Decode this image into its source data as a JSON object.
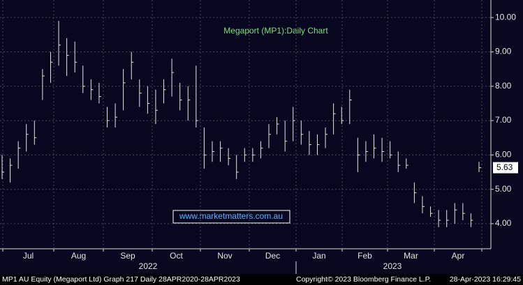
{
  "chart_data": {
    "type": "ohlc",
    "title": "Megaport (MP1):Daily Chart",
    "watermark": "www.marketmatters.com.au",
    "categories": [
      "Jul",
      "Aug",
      "Sep",
      "Oct",
      "Nov",
      "Dec",
      "Jan",
      "Feb",
      "Mar",
      "Apr"
    ],
    "years": [
      "2022",
      "2023"
    ],
    "ylim": [
      3.27,
      10.51
    ],
    "yticks": [
      {
        "value": 4,
        "label": "4.00"
      },
      {
        "value": 5,
        "label": "5.00"
      },
      {
        "value": 6,
        "label": "6.00"
      },
      {
        "value": 7,
        "label": "7.00"
      },
      {
        "value": 8,
        "label": "8.00"
      },
      {
        "value": 9,
        "label": "9.00"
      },
      {
        "value": 10,
        "label": "10.00"
      }
    ],
    "grid": true,
    "color": "#e6e6e6",
    "last_price": 5.63,
    "high": [
      6.0,
      5.9,
      6.4,
      6.9,
      7.0,
      8.5,
      9.0,
      9.9,
      9.4,
      9.3,
      8.6,
      8.2,
      8.1,
      7.4,
      7.5,
      8.5,
      9.0,
      8.2,
      8.0,
      7.9,
      8.2,
      8.8,
      8.1,
      8.0,
      8.6,
      6.8,
      6.4,
      6.4,
      6.2,
      6.0,
      6.2,
      6.2,
      6.4,
      6.9,
      7.1,
      7.0,
      7.4,
      7.0,
      6.7,
      6.6,
      6.8,
      7.5,
      7.4,
      7.9,
      6.5,
      6.4,
      6.6,
      6.5,
      6.4,
      6.1,
      5.9,
      5.2,
      4.8,
      4.5,
      4.4,
      4.4,
      4.6,
      4.6,
      4.3,
      5.8
    ],
    "low": [
      5.3,
      5.2,
      5.6,
      6.1,
      6.3,
      7.6,
      8.1,
      8.6,
      8.3,
      8.4,
      7.8,
      7.6,
      7.5,
      6.8,
      6.8,
      7.3,
      8.2,
      7.4,
      7.2,
      6.9,
      7.5,
      7.7,
      7.3,
      7.0,
      6.8,
      5.6,
      5.8,
      5.8,
      5.7,
      5.3,
      5.8,
      5.8,
      5.9,
      6.2,
      6.6,
      6.1,
      6.4,
      6.3,
      6.0,
      6.0,
      6.2,
      6.6,
      6.9,
      6.9,
      5.5,
      5.8,
      5.9,
      5.8,
      5.9,
      5.5,
      5.6,
      4.6,
      4.3,
      4.2,
      3.9,
      3.9,
      4.0,
      4.1,
      3.9,
      5.5
    ],
    "close": [
      5.5,
      5.7,
      6.2,
      6.6,
      6.5,
      8.3,
      8.7,
      9.2,
      8.9,
      8.7,
      8.0,
      7.9,
      7.7,
      7.0,
      7.1,
      8.1,
      8.7,
      7.8,
      7.5,
      7.3,
      7.9,
      8.4,
      7.6,
      7.6,
      7.0,
      6.0,
      6.1,
      6.2,
      5.9,
      5.5,
      6.0,
      6.0,
      6.2,
      6.6,
      6.9,
      6.4,
      7.0,
      6.6,
      6.3,
      6.3,
      6.6,
      7.2,
      7.0,
      7.6,
      6.0,
      6.1,
      6.2,
      6.1,
      6.0,
      5.7,
      5.7,
      4.9,
      4.5,
      4.3,
      4.1,
      4.1,
      4.4,
      4.3,
      4.1,
      5.63
    ]
  },
  "footer": {
    "left": "MP1 AU Equity (Megaport Ltd) Graph 217  Daily 28APR2020-28APR2023",
    "copyright": "Copyright© 2023 Bloomberg Finance L.P.",
    "timestamp": "28-Apr-2023 16:29:45"
  }
}
